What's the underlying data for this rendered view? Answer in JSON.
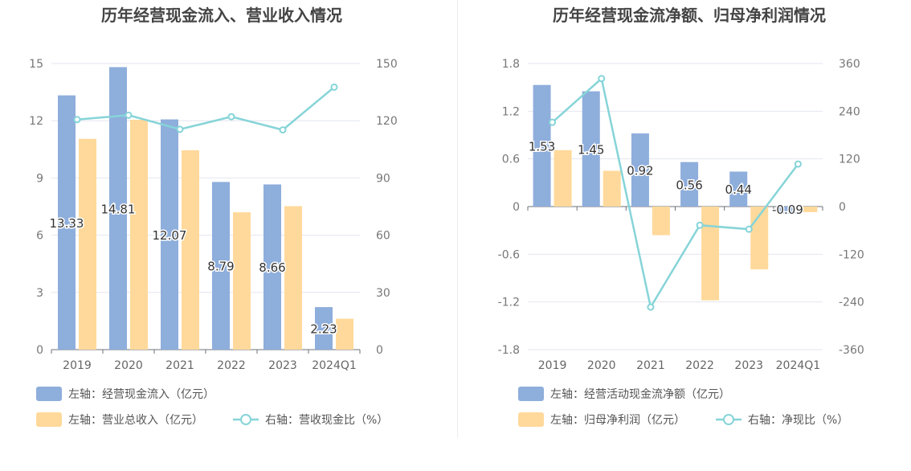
{
  "chart_data": [
    {
      "type": "bar",
      "title": "历年经营现金流入、营业收入情况",
      "categories": [
        "2019",
        "2020",
        "2021",
        "2022",
        "2023",
        "2024Q1"
      ],
      "left_axis": {
        "ylim": [
          0,
          15
        ],
        "ticks": [
          "0",
          "3",
          "6",
          "9",
          "12",
          "15"
        ]
      },
      "right_axis": {
        "ylim": [
          0,
          150
        ],
        "ticks": [
          "0",
          "30",
          "60",
          "90",
          "120",
          "150"
        ]
      },
      "series": [
        {
          "name": "左轴：经营现金流入（亿元）",
          "type": "bar",
          "axis": "left",
          "color": "#8eaedc",
          "values": [
            13.33,
            14.81,
            12.07,
            8.79,
            8.66,
            2.23
          ],
          "labels": [
            "13.33",
            "14.81",
            "12.07",
            "8.79",
            "8.66",
            "2.23"
          ]
        },
        {
          "name": "左轴：营业总收入（亿元）",
          "type": "bar",
          "axis": "left",
          "color": "#ffd99b",
          "values": [
            11.05,
            12.05,
            10.45,
            7.2,
            7.52,
            1.62
          ]
        },
        {
          "name": "右轴：营收现金比（%）",
          "type": "line",
          "axis": "right",
          "color": "#86d4d8",
          "values": [
            120.6,
            122.9,
            115.5,
            122.1,
            115.2,
            137.6
          ]
        }
      ],
      "grid": true,
      "legend_position": "bottom"
    },
    {
      "type": "bar",
      "title": "历年经营现金流净额、归母净利润情况",
      "categories": [
        "2019",
        "2020",
        "2021",
        "2022",
        "2023",
        "2024Q1"
      ],
      "left_axis": {
        "ylim": [
          -1.8,
          1.8
        ],
        "ticks": [
          "-1.8",
          "-1.2",
          "-0.6",
          "0",
          "0.6",
          "1.2",
          "1.8"
        ]
      },
      "right_axis": {
        "ylim": [
          -360,
          360
        ],
        "ticks": [
          "-360",
          "-240",
          "-120",
          "0",
          "120",
          "240",
          "360"
        ]
      },
      "series": [
        {
          "name": "左轴：经营活动现金流净额（亿元）",
          "type": "bar",
          "axis": "left",
          "color": "#8eaedc",
          "values": [
            1.53,
            1.45,
            0.92,
            0.56,
            0.44,
            -0.09
          ],
          "labels": [
            "1.53",
            "1.45",
            "0.92",
            "0.56",
            "0.44",
            "-0.09"
          ]
        },
        {
          "name": "左轴：归母净利润（亿元）",
          "type": "bar",
          "axis": "left",
          "color": "#ffd99b",
          "values": [
            0.71,
            0.45,
            -0.36,
            -1.18,
            -0.79,
            -0.07
          ]
        },
        {
          "name": "右轴：净现比（%）",
          "type": "line",
          "axis": "right",
          "color": "#86d4d8",
          "values": [
            212,
            322,
            -253,
            -47,
            -57,
            107
          ]
        }
      ],
      "grid": true,
      "legend_position": "bottom"
    }
  ]
}
